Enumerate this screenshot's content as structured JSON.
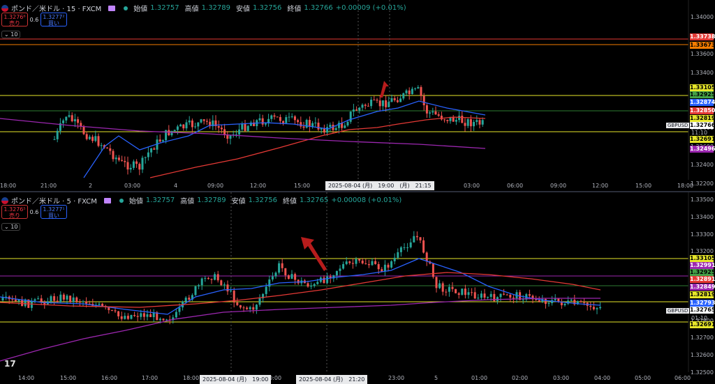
{
  "colors": {
    "up": "#26a69a",
    "down": "#ef5350",
    "ma_blue": "#2962ff",
    "ma_red": "#e53935",
    "ma_purple": "#9c27b0",
    "yellow": "#e6e62a",
    "green": "#2e7d32",
    "orange": "#f57c00",
    "red": "#e53935"
  },
  "pane1": {
    "title": "ポンド／米ドル · 15 · FXCM",
    "sell": {
      "price": "1.3276⁶",
      "label": "売り"
    },
    "spread": "0.6",
    "buy": {
      "price": "1.3277²",
      "label": "買い"
    },
    "ohlc": [
      {
        "k": "始値",
        "v": "1.32757"
      },
      {
        "k": "高値",
        "v": "1.32789"
      },
      {
        "k": "安値",
        "v": "1.32756"
      },
      {
        "k": "終値",
        "v": "1.32766"
      }
    ],
    "change": "+0.00009 (+0.01%)",
    "collapse": "10",
    "y_ticks": [
      "1.34000",
      "1.33800",
      "1.33600",
      "1.33400",
      "1.33200",
      "1.33000",
      "1.32800",
      "1.32600",
      "1.32400",
      "1.32200"
    ],
    "x_ticks": [
      "18:00",
      "21:00",
      "2",
      "03:00",
      "4",
      "09:00",
      "12:00",
      "15:00",
      "5",
      "03:00",
      "06:00",
      "09:00",
      "12:00",
      "15:00",
      "18:00"
    ],
    "time_box": "2025-08-04 (月)　19:00　(月)　21:15",
    "symbol": "GBPUSD",
    "countdown": "11:10",
    "price_labels": [
      {
        "v": "1.33738",
        "c": "#e53935",
        "fg": "#fff"
      },
      {
        "v": "1.33673",
        "c": "#f57c00",
        "fg": "#000"
      },
      {
        "v": "1.33105",
        "c": "#e6e62a",
        "fg": "#000"
      },
      {
        "v": "1.32925",
        "c": "#43a047",
        "fg": "#000"
      },
      {
        "v": "1.32874",
        "c": "#2962ff",
        "fg": "#fff"
      },
      {
        "v": "1.32850",
        "c": "#e53935",
        "fg": "#fff"
      },
      {
        "v": "1.32819",
        "c": "#e6e62a",
        "fg": "#000"
      },
      {
        "v": "1.32766",
        "c": "#ffffff",
        "fg": "#000"
      },
      {
        "v": "1.32691",
        "c": "#e6e62a",
        "fg": "#000"
      },
      {
        "v": "1.32496",
        "c": "#9c27b0",
        "fg": "#fff"
      }
    ]
  },
  "pane2": {
    "title": "ポンド／米ドル · 5 · FXCM",
    "sell": {
      "price": "1.3276⁵",
      "label": "売り"
    },
    "spread": "0.6",
    "buy": {
      "price": "1.3277¹",
      "label": "買い"
    },
    "ohlc": [
      {
        "k": "始値",
        "v": "1.32757"
      },
      {
        "k": "高値",
        "v": "1.32789"
      },
      {
        "k": "安値",
        "v": "1.32756"
      },
      {
        "k": "終値",
        "v": "1.32765"
      }
    ],
    "change": "+0.00008 (+0.01%)",
    "collapse": "10",
    "y_ticks": [
      "1.33500",
      "1.33400",
      "1.33300",
      "1.33200",
      "1.33100",
      "1.33000",
      "1.32900",
      "1.32800",
      "1.32700",
      "1.32600",
      "1.32500"
    ],
    "x_ticks": [
      "14:00",
      "15:00",
      "16:00",
      "17:00",
      "18:00",
      "20:00",
      "22:00",
      "23:00",
      "5",
      "01:00",
      "02:00",
      "03:00",
      "04:00",
      "05:00",
      "06:00"
    ],
    "time_box_1": "2025-08-04 (月)　19:00",
    "time_box_2": "2025-08-04 (月)　21:20",
    "symbol": "GBPUSD",
    "countdown": "01:10",
    "price_labels": [
      {
        "v": "1.33105",
        "c": "#e6e62a",
        "fg": "#000"
      },
      {
        "v": "1.32991",
        "c": "#9c27b0",
        "fg": "#fff"
      },
      {
        "v": "1.32925",
        "c": "#43a047",
        "fg": "#000"
      },
      {
        "v": "1.32891",
        "c": "#e53935",
        "fg": "#fff"
      },
      {
        "v": "1.32849",
        "c": "#9c27b0",
        "fg": "#fff"
      },
      {
        "v": "1.32819",
        "c": "#e6e62a",
        "fg": "#000"
      },
      {
        "v": "1.32793",
        "c": "#2962ff",
        "fg": "#fff"
      },
      {
        "v": "1.32765",
        "c": "#ffffff",
        "fg": "#000"
      },
      {
        "v": "1.32691",
        "c": "#e6e62a",
        "fg": "#000"
      }
    ]
  },
  "logo": "17"
}
